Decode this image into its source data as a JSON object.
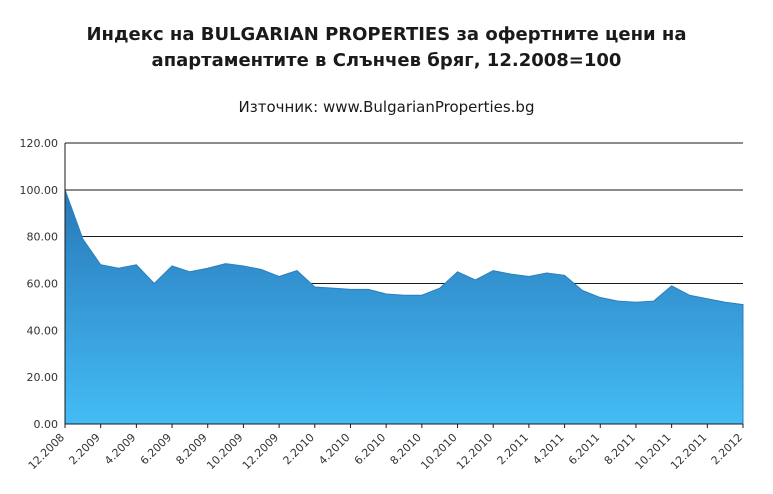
{
  "title": "Индекс на BULGARIAN PROPERTIES за офертните цени на апартаментите в Слънчев бряг, 12.2008=100",
  "subtitle": "Източник: www.BulgarianProperties.bg",
  "chart_data": {
    "type": "area",
    "title": "Индекс на BULGARIAN PROPERTIES за офертните цени на апартаментите в Слънчев бряг, 12.2008=100",
    "subtitle": "Източник: www.BulgarianProperties.bg",
    "x": [
      "12.2008",
      "1.2009",
      "2.2009",
      "3.2009",
      "4.2009",
      "5.2009",
      "6.2009",
      "7.2009",
      "8.2009",
      "9.2009",
      "10.2009",
      "11.2009",
      "12.2009",
      "1.2010",
      "2.2010",
      "3.2010",
      "4.2010",
      "5.2010",
      "6.2010",
      "7.2010",
      "8.2010",
      "9.2010",
      "10.2010",
      "11.2010",
      "12.2010",
      "1.2011",
      "2.2011",
      "3.2011",
      "4.2011",
      "5.2011",
      "6.2011",
      "7.2011",
      "8.2011",
      "9.2011",
      "10.2011",
      "11.2011",
      "12.2011",
      "1.2012",
      "2.2012"
    ],
    "values": [
      100,
      79,
      68,
      66.5,
      68,
      60,
      67.5,
      65,
      66.5,
      68.5,
      67.5,
      66,
      63,
      65.5,
      58.5,
      58,
      57.5,
      57.5,
      55.5,
      55,
      55,
      58,
      65,
      61.5,
      65.5,
      64,
      63,
      64.5,
      63.5,
      57,
      54,
      52.5,
      52,
      52.5,
      59,
      55,
      53.5,
      52,
      51
    ],
    "x_tick_labels": [
      "12.2008",
      "2.2009",
      "4.2009",
      "6.2009",
      "8.2009",
      "10.2009",
      "12.2009",
      "2.2010",
      "4.2010",
      "6.2010",
      "8.2010",
      "10.2010",
      "12.2010",
      "2.2011",
      "4.2011",
      "6.2011",
      "8.2011",
      "10.2011",
      "12.2011",
      "2.2012"
    ],
    "x_tick_every": 2,
    "y_ticks": [
      "0.00",
      "20.00",
      "40.00",
      "60.00",
      "80.00",
      "100.00",
      "120.00"
    ],
    "ylim": [
      0,
      120
    ],
    "grid": "horizontal",
    "legend": "none",
    "colors": {
      "area_top": "#2878B8",
      "area_bottom": "#44BCF5",
      "area_edge": "#2B7FBE",
      "gridline": "#1a1a1a",
      "axis": "#1a1a1a",
      "tick_text": "#333333"
    }
  }
}
